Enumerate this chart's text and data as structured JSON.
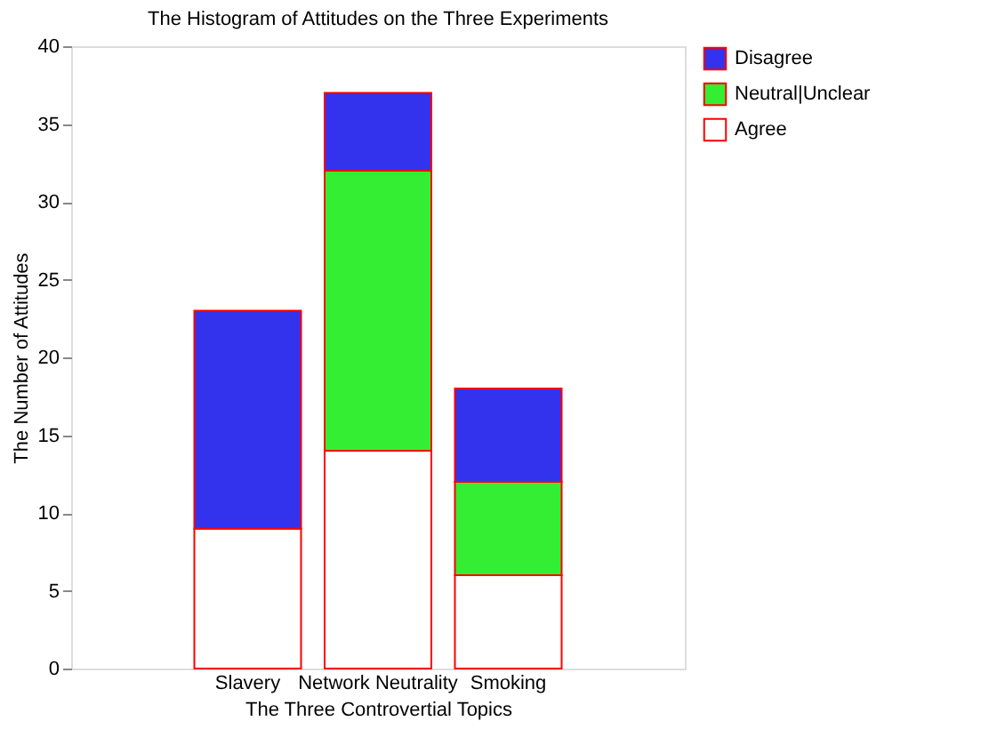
{
  "chart_data": {
    "type": "bar",
    "title": "The Histogram of Attitudes on the Three Experiments",
    "xlabel": "The Three Controvertial Topics",
    "ylabel": "The Number of Attitudes",
    "categories": [
      "Slavery",
      "Network Neutrality",
      "Smoking"
    ],
    "stacked": true,
    "series": [
      {
        "name": "Agree",
        "color": "#ffffff",
        "values": [
          9,
          14,
          6
        ]
      },
      {
        "name": "Neutral|Unclear",
        "color": "#33ee33",
        "values": [
          0,
          18,
          6
        ]
      },
      {
        "name": "Disagree",
        "color": "#3333ee",
        "values": [
          14,
          5,
          6
        ]
      }
    ],
    "ylim": [
      0,
      40
    ],
    "yticks": [
      0,
      5,
      10,
      15,
      20,
      25,
      30,
      35,
      40
    ],
    "grid": false,
    "legend": "top right"
  }
}
